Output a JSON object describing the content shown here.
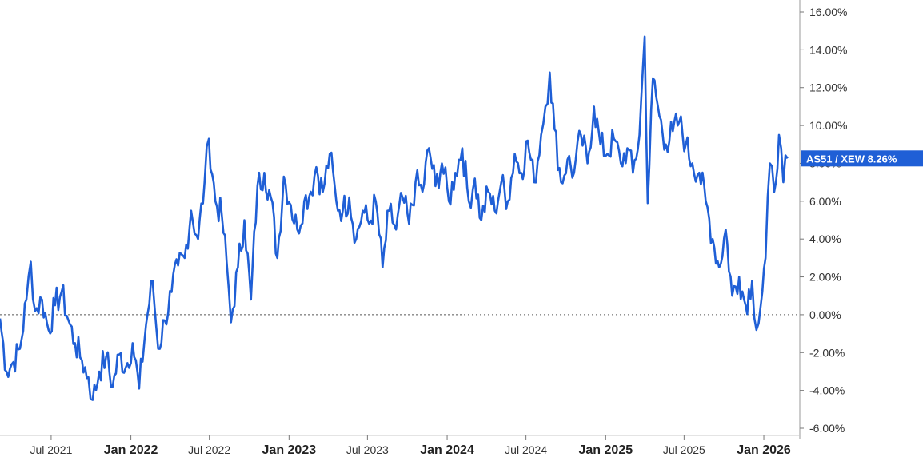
{
  "chart_data": {
    "type": "line",
    "title": "",
    "xlabel": "",
    "ylabel": "",
    "ylim": [
      -6,
      16
    ],
    "y_ticks": [
      16,
      14,
      12,
      10,
      8,
      6,
      4,
      2,
      0,
      -2,
      -4,
      -6
    ],
    "y_tick_labels": [
      "16.00%",
      "14.00%",
      "12.00%",
      "10.00%",
      "8.00%",
      "6.00%",
      "4.00%",
      "2.00%",
      "0.00%",
      "-2.00%",
      "-4.00%",
      "-6.00%"
    ],
    "x_ticks": [
      {
        "date": "2021-07-01",
        "label": "Jul 2021",
        "major": false
      },
      {
        "date": "2022-01-01",
        "label": "Jan 2022",
        "major": true
      },
      {
        "date": "2022-07-01",
        "label": "Jul 2022",
        "major": false
      },
      {
        "date": "2023-01-01",
        "label": "Jan 2023",
        "major": true
      },
      {
        "date": "2023-07-01",
        "label": "Jul 2023",
        "major": false
      },
      {
        "date": "2024-01-01",
        "label": "Jan 2024",
        "major": true
      },
      {
        "date": "2024-07-01",
        "label": "Jul 2024",
        "major": false
      },
      {
        "date": "2025-01-01",
        "label": "Jan 2025",
        "major": true
      },
      {
        "date": "2025-07-01",
        "label": "Jul 2025",
        "major": false
      },
      {
        "date": "2026-01-01",
        "label": "Jan 2026",
        "major": true
      }
    ],
    "x_range": [
      "2021-03-05",
      "2026-03-25"
    ],
    "reference_line": 0,
    "grid": false,
    "series": [
      {
        "name": "AS51 / XEW",
        "color": "#1f5fd6",
        "last_value_label": "8.26%",
        "points": [
          [
            "2021-03-05",
            -0.2
          ],
          [
            "2021-03-20",
            -3.0
          ],
          [
            "2021-04-05",
            -2.5
          ],
          [
            "2021-04-20",
            -1.8
          ],
          [
            "2021-05-05",
            0.8
          ],
          [
            "2021-05-15",
            2.8
          ],
          [
            "2021-05-25",
            0.2
          ],
          [
            "2021-06-10",
            0.8
          ],
          [
            "2021-06-25",
            -0.8
          ],
          [
            "2021-07-10",
            0.5
          ],
          [
            "2021-07-25",
            1.2
          ],
          [
            "2021-08-10",
            -0.3
          ],
          [
            "2021-08-25",
            -1.5
          ],
          [
            "2021-09-10",
            -2.4
          ],
          [
            "2021-09-25",
            -3.3
          ],
          [
            "2021-10-05",
            -4.5
          ],
          [
            "2021-10-20",
            -3.0
          ],
          [
            "2021-11-05",
            -2.2
          ],
          [
            "2021-11-20",
            -3.8
          ],
          [
            "2021-12-05",
            -2.1
          ],
          [
            "2021-12-20",
            -2.8
          ],
          [
            "2022-01-05",
            -1.5
          ],
          [
            "2022-01-20",
            -3.9
          ],
          [
            "2022-02-05",
            -0.5
          ],
          [
            "2022-02-20",
            1.8
          ],
          [
            "2022-03-05",
            -1.8
          ],
          [
            "2022-03-20",
            -0.3
          ],
          [
            "2022-04-05",
            1.2
          ],
          [
            "2022-04-20",
            2.6
          ],
          [
            "2022-05-05",
            3.0
          ],
          [
            "2022-05-20",
            5.5
          ],
          [
            "2022-06-05",
            4.0
          ],
          [
            "2022-06-20",
            7.0
          ],
          [
            "2022-06-30",
            9.3
          ],
          [
            "2022-07-15",
            6.0
          ],
          [
            "2022-07-30",
            5.2
          ],
          [
            "2022-08-10",
            2.8
          ],
          [
            "2022-08-20",
            -0.4
          ],
          [
            "2022-09-05",
            2.5
          ],
          [
            "2022-09-20",
            5.0
          ],
          [
            "2022-10-05",
            0.8
          ],
          [
            "2022-10-20",
            6.8
          ],
          [
            "2022-11-05",
            7.5
          ],
          [
            "2022-11-20",
            6.2
          ],
          [
            "2022-12-05",
            3.0
          ],
          [
            "2022-12-20",
            7.3
          ],
          [
            "2023-01-05",
            5.8
          ],
          [
            "2023-01-20",
            4.5
          ],
          [
            "2023-02-05",
            6.0
          ],
          [
            "2023-02-20",
            6.5
          ],
          [
            "2023-03-05",
            7.8
          ],
          [
            "2023-03-20",
            6.5
          ],
          [
            "2023-04-05",
            8.5
          ],
          [
            "2023-04-20",
            6.0
          ],
          [
            "2023-05-05",
            5.5
          ],
          [
            "2023-05-20",
            6.2
          ],
          [
            "2023-06-05",
            4.0
          ],
          [
            "2023-06-20",
            5.5
          ],
          [
            "2023-07-05",
            4.8
          ],
          [
            "2023-07-20",
            6.0
          ],
          [
            "2023-08-05",
            2.5
          ],
          [
            "2023-08-20",
            5.5
          ],
          [
            "2023-09-05",
            4.5
          ],
          [
            "2023-09-20",
            6.2
          ],
          [
            "2023-10-05",
            4.8
          ],
          [
            "2023-10-20",
            7.0
          ],
          [
            "2023-11-05",
            6.5
          ],
          [
            "2023-11-20",
            8.8
          ],
          [
            "2023-12-05",
            6.8
          ],
          [
            "2023-12-20",
            8.0
          ],
          [
            "2024-01-05",
            6.0
          ],
          [
            "2024-01-20",
            7.5
          ],
          [
            "2024-02-05",
            8.8
          ],
          [
            "2024-02-20",
            6.0
          ],
          [
            "2024-03-05",
            7.2
          ],
          [
            "2024-03-20",
            5.0
          ],
          [
            "2024-04-05",
            6.5
          ],
          [
            "2024-04-20",
            5.5
          ],
          [
            "2024-05-05",
            7.0
          ],
          [
            "2024-05-20",
            6.0
          ],
          [
            "2024-06-05",
            8.5
          ],
          [
            "2024-06-20",
            7.5
          ],
          [
            "2024-07-05",
            9.2
          ],
          [
            "2024-07-20",
            7.0
          ],
          [
            "2024-08-05",
            9.5
          ],
          [
            "2024-08-15",
            11.0
          ],
          [
            "2024-08-25",
            12.8
          ],
          [
            "2024-09-05",
            9.8
          ],
          [
            "2024-09-20",
            7.0
          ],
          [
            "2024-10-05",
            8.2
          ],
          [
            "2024-10-20",
            7.5
          ],
          [
            "2024-11-05",
            9.5
          ],
          [
            "2024-11-20",
            8.0
          ],
          [
            "2024-12-05",
            11.0
          ],
          [
            "2024-12-20",
            9.0
          ],
          [
            "2025-01-05",
            8.5
          ],
          [
            "2025-01-20",
            9.3
          ],
          [
            "2025-02-05",
            8.0
          ],
          [
            "2025-02-20",
            8.8
          ],
          [
            "2025-03-05",
            7.5
          ],
          [
            "2025-03-20",
            9.5
          ],
          [
            "2025-04-01",
            14.7
          ],
          [
            "2025-04-08",
            5.9
          ],
          [
            "2025-04-20",
            12.5
          ],
          [
            "2025-05-05",
            10.5
          ],
          [
            "2025-05-20",
            9.0
          ],
          [
            "2025-06-05",
            9.7
          ],
          [
            "2025-06-20",
            10.2
          ],
          [
            "2025-07-05",
            9.0
          ],
          [
            "2025-07-20",
            8.0
          ],
          [
            "2025-08-05",
            7.5
          ],
          [
            "2025-08-20",
            6.0
          ],
          [
            "2025-09-05",
            4.0
          ],
          [
            "2025-09-20",
            2.5
          ],
          [
            "2025-10-05",
            4.5
          ],
          [
            "2025-10-20",
            1.0
          ],
          [
            "2025-11-05",
            2.0
          ],
          [
            "2025-11-20",
            0.5
          ],
          [
            "2025-12-05",
            1.8
          ],
          [
            "2025-12-15",
            -0.8
          ],
          [
            "2025-12-25",
            0.5
          ],
          [
            "2026-01-05",
            3.0
          ],
          [
            "2026-01-15",
            8.0
          ],
          [
            "2026-01-25",
            6.5
          ],
          [
            "2026-02-05",
            9.5
          ],
          [
            "2026-02-15",
            7.0
          ],
          [
            "2026-02-25",
            8.26
          ]
        ]
      }
    ]
  }
}
